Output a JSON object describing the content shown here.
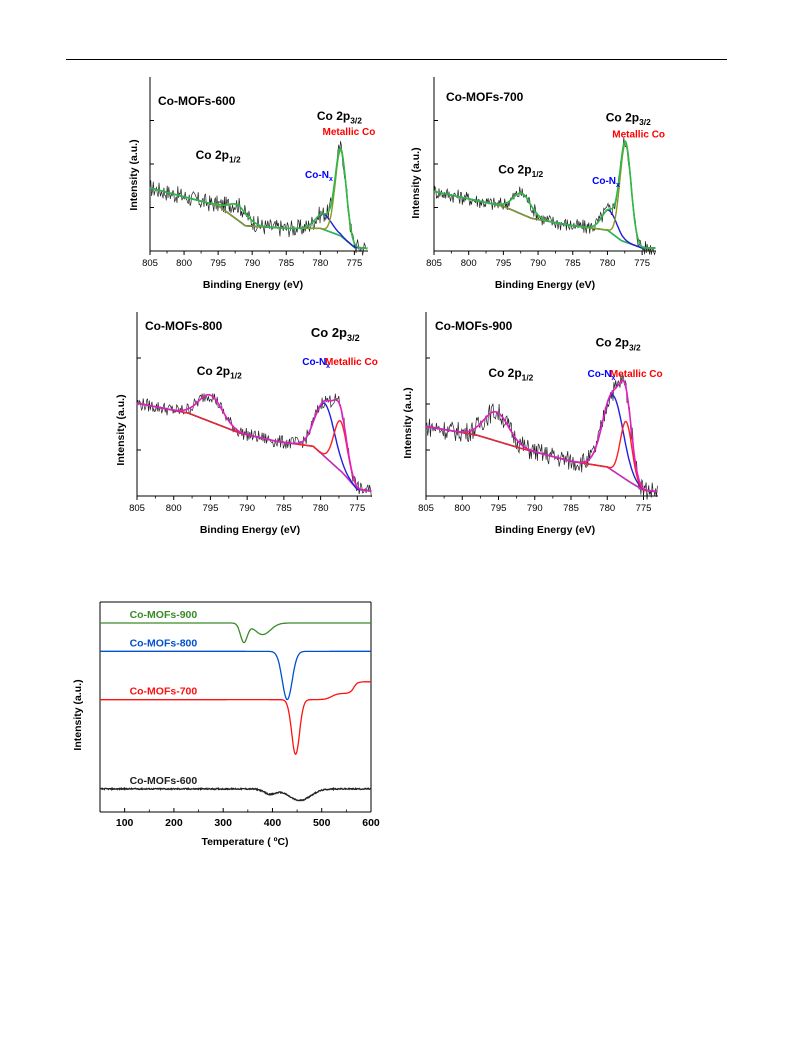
{
  "chart_data": [
    {
      "id": "p600",
      "type": "line",
      "title": "Co-MOFs-600",
      "xlabel": "Binding Energy (eV)",
      "ylabel": "Intensity (a.u.)",
      "xlim": [
        805,
        773
      ],
      "xticks": [
        805,
        800,
        795,
        790,
        785,
        780,
        775
      ],
      "annotations": [
        {
          "text": "Co 2p",
          "sub": "1/2",
          "color": "#000000",
          "x": 795,
          "y": 0.73,
          "size": "med"
        },
        {
          "text": "Co 2p",
          "sub": "3/2",
          "color": "#000000",
          "x": 777.2,
          "y": 1.04,
          "size": "med"
        },
        {
          "text": "Metallic Co",
          "sub": "",
          "color": "#ff0000",
          "x": 775.8,
          "y": 0.92,
          "size": "small"
        },
        {
          "text": "Co-N",
          "sub": "x",
          "color": "#0000ff",
          "x": 780.2,
          "y": 0.58,
          "size": "small"
        }
      ],
      "background": [
        [
          805,
          0.5
        ],
        [
          795,
          0.36
        ],
        [
          791,
          0.2
        ],
        [
          785,
          0.18
        ],
        [
          780,
          0.18
        ],
        [
          777,
          0.12
        ],
        [
          775,
          0.03
        ],
        [
          773,
          0.02
        ]
      ],
      "peaks": [
        {
          "center": 792.0,
          "width": 1.4,
          "height": 0.12,
          "color": "#2db84a"
        },
        {
          "center": 779.5,
          "width": 1.2,
          "height": 0.12,
          "color": "#2020d0"
        },
        {
          "center": 777.0,
          "width": 0.8,
          "height": 0.68,
          "color": "#8a9a20"
        }
      ],
      "envelope_color": "#2db84a",
      "noise": 0.07,
      "ylim": [
        0,
        1.3
      ]
    },
    {
      "id": "p700",
      "type": "line",
      "title": "Co-MOFs-700",
      "xlabel": "Binding Energy (eV)",
      "ylabel": "Intensity (a.u.)",
      "xlim": [
        805,
        773
      ],
      "xticks": [
        805,
        800,
        795,
        790,
        785,
        780,
        775
      ],
      "annotations": [
        {
          "text": "Co 2p",
          "sub": "1/2",
          "color": "#000000",
          "x": 792.5,
          "y": 0.52,
          "size": "med"
        },
        {
          "text": "Co 2p",
          "sub": "3/2",
          "color": "#000000",
          "x": 777,
          "y": 0.87,
          "size": "med"
        },
        {
          "text": "Metallic Co",
          "sub": "",
          "color": "#ff0000",
          "x": 775.5,
          "y": 0.76,
          "size": "small"
        },
        {
          "text": "Co-N",
          "sub": "x",
          "color": "#0000ff",
          "x": 780.2,
          "y": 0.45,
          "size": "small"
        }
      ],
      "background": [
        [
          805,
          0.4
        ],
        [
          795,
          0.3
        ],
        [
          791,
          0.22
        ],
        [
          785,
          0.17
        ],
        [
          780,
          0.14
        ],
        [
          778,
          0.07
        ],
        [
          775,
          0.02
        ],
        [
          773,
          0.02
        ]
      ],
      "peaks": [
        {
          "center": 792.3,
          "width": 1.3,
          "height": 0.14,
          "color": "#2db84a"
        },
        {
          "center": 779.7,
          "width": 1.1,
          "height": 0.14,
          "color": "#2020d0"
        },
        {
          "center": 777.4,
          "width": 0.8,
          "height": 0.66,
          "color": "#8a9a20"
        }
      ],
      "envelope_color": "#2db84a",
      "noise": 0.05,
      "ylim": [
        0,
        1.1
      ]
    },
    {
      "id": "p800",
      "type": "line",
      "title": "Co-MOFs-800",
      "xlabel": "Binding Energy (eV)",
      "ylabel": "Intensity (a.u.)",
      "xlim": [
        805,
        773
      ],
      "xticks": [
        805,
        800,
        795,
        790,
        785,
        780,
        775
      ],
      "annotations": [
        {
          "text": "Co 2p",
          "sub": "1/2",
          "color": "#000000",
          "x": 793.8,
          "y": 0.73,
          "size": "med"
        },
        {
          "text": "Co 2p",
          "sub": "3/2",
          "color": "#000000",
          "x": 778,
          "y": 0.96,
          "size": "big"
        },
        {
          "text": "Metallic Co",
          "sub": "",
          "color": "#ff0000",
          "x": 775.8,
          "y": 0.79,
          "size": "small"
        },
        {
          "text": "Co-N",
          "sub": "x",
          "color": "#0000ff",
          "x": 780.6,
          "y": 0.79,
          "size": "small"
        }
      ],
      "background": [
        [
          805,
          0.56
        ],
        [
          798,
          0.5
        ],
        [
          791,
          0.38
        ],
        [
          786,
          0.33
        ],
        [
          781,
          0.3
        ],
        [
          777,
          0.14
        ],
        [
          775,
          0.04
        ],
        [
          773,
          0.03
        ]
      ],
      "peaks": [
        {
          "center": 795.0,
          "width": 1.6,
          "height": 0.16,
          "color": "#e020c0"
        },
        {
          "center": 779.4,
          "width": 1.3,
          "height": 0.32,
          "color": "#2020e0"
        },
        {
          "center": 777.3,
          "width": 0.9,
          "height": 0.3,
          "color": "#ff2020"
        }
      ],
      "envelope_color": "#e020c0",
      "noise": 0.04,
      "ylim": [
        0,
        1.05
      ]
    },
    {
      "id": "p900",
      "type": "line",
      "title": "Co-MOFs-900",
      "xlabel": "Binding Energy (eV)",
      "ylabel": "Intensity (a.u.)",
      "xlim": [
        805,
        773
      ],
      "xticks": [
        805,
        800,
        795,
        790,
        785,
        780,
        775
      ],
      "annotations": [
        {
          "text": "Co 2p",
          "sub": "1/2",
          "color": "#000000",
          "x": 793.3,
          "y": 0.82,
          "size": "med"
        },
        {
          "text": "Co 2p",
          "sub": "3/2",
          "color": "#000000",
          "x": 778.5,
          "y": 1.03,
          "size": "med"
        },
        {
          "text": "Metallic Co",
          "sub": "",
          "color": "#ff0000",
          "x": 776,
          "y": 0.82,
          "size": "small"
        },
        {
          "text": "Co-N",
          "sub": "x",
          "color": "#0000ff",
          "x": 780.8,
          "y": 0.82,
          "size": "small"
        }
      ],
      "background": [
        [
          805,
          0.48
        ],
        [
          798,
          0.42
        ],
        [
          792,
          0.33
        ],
        [
          785,
          0.24
        ],
        [
          780,
          0.2
        ],
        [
          777,
          0.1
        ],
        [
          775,
          0.04
        ],
        [
          773,
          0.03
        ]
      ],
      "peaks": [
        {
          "center": 795.3,
          "width": 1.7,
          "height": 0.2,
          "color": "#e020c0"
        },
        {
          "center": 779.2,
          "width": 1.4,
          "height": 0.52,
          "color": "#2020e0"
        },
        {
          "center": 777.4,
          "width": 0.8,
          "height": 0.4,
          "color": "#ff2020"
        }
      ],
      "envelope_color": "#e020c0",
      "noise": 0.07,
      "ylim": [
        0,
        1.2
      ]
    },
    {
      "id": "tga",
      "type": "line",
      "xlabel": "Temperature ( ºC)",
      "ylabel": "Intensity (a.u.)",
      "xlim": [
        50,
        600
      ],
      "xticks": [
        100,
        200,
        300,
        400,
        500,
        600
      ],
      "ylim": [
        0,
        10
      ],
      "series": [
        {
          "name": "Co-MOFs-900",
          "color": "#3a8a2a",
          "base": 9.0,
          "dips": [
            {
              "center": 342,
              "width": 7,
              "depth": 0.9
            },
            {
              "center": 380,
              "width": 16,
              "depth": 0.55
            }
          ],
          "steps": []
        },
        {
          "name": "Co-MOFs-800",
          "color": "#0050d0",
          "base": 7.65,
          "dips": [
            {
              "center": 430,
              "width": 10,
              "depth": 2.3
            }
          ],
          "steps": []
        },
        {
          "name": "Co-MOFs-700",
          "color": "#ff1010",
          "base": 5.35,
          "dips": [
            {
              "center": 447,
              "width": 8,
              "depth": 2.6
            }
          ],
          "steps": [
            {
              "center": 520,
              "width": 25,
              "height": 0.3
            },
            {
              "center": 565,
              "width": 15,
              "height": 0.55
            }
          ]
        },
        {
          "name": "Co-MOFs-600",
          "color": "#222222",
          "base": 1.1,
          "dips": [
            {
              "center": 395,
              "width": 12,
              "depth": 0.25
            },
            {
              "center": 455,
              "width": 22,
              "depth": 0.55
            }
          ],
          "steps": []
        }
      ]
    }
  ]
}
